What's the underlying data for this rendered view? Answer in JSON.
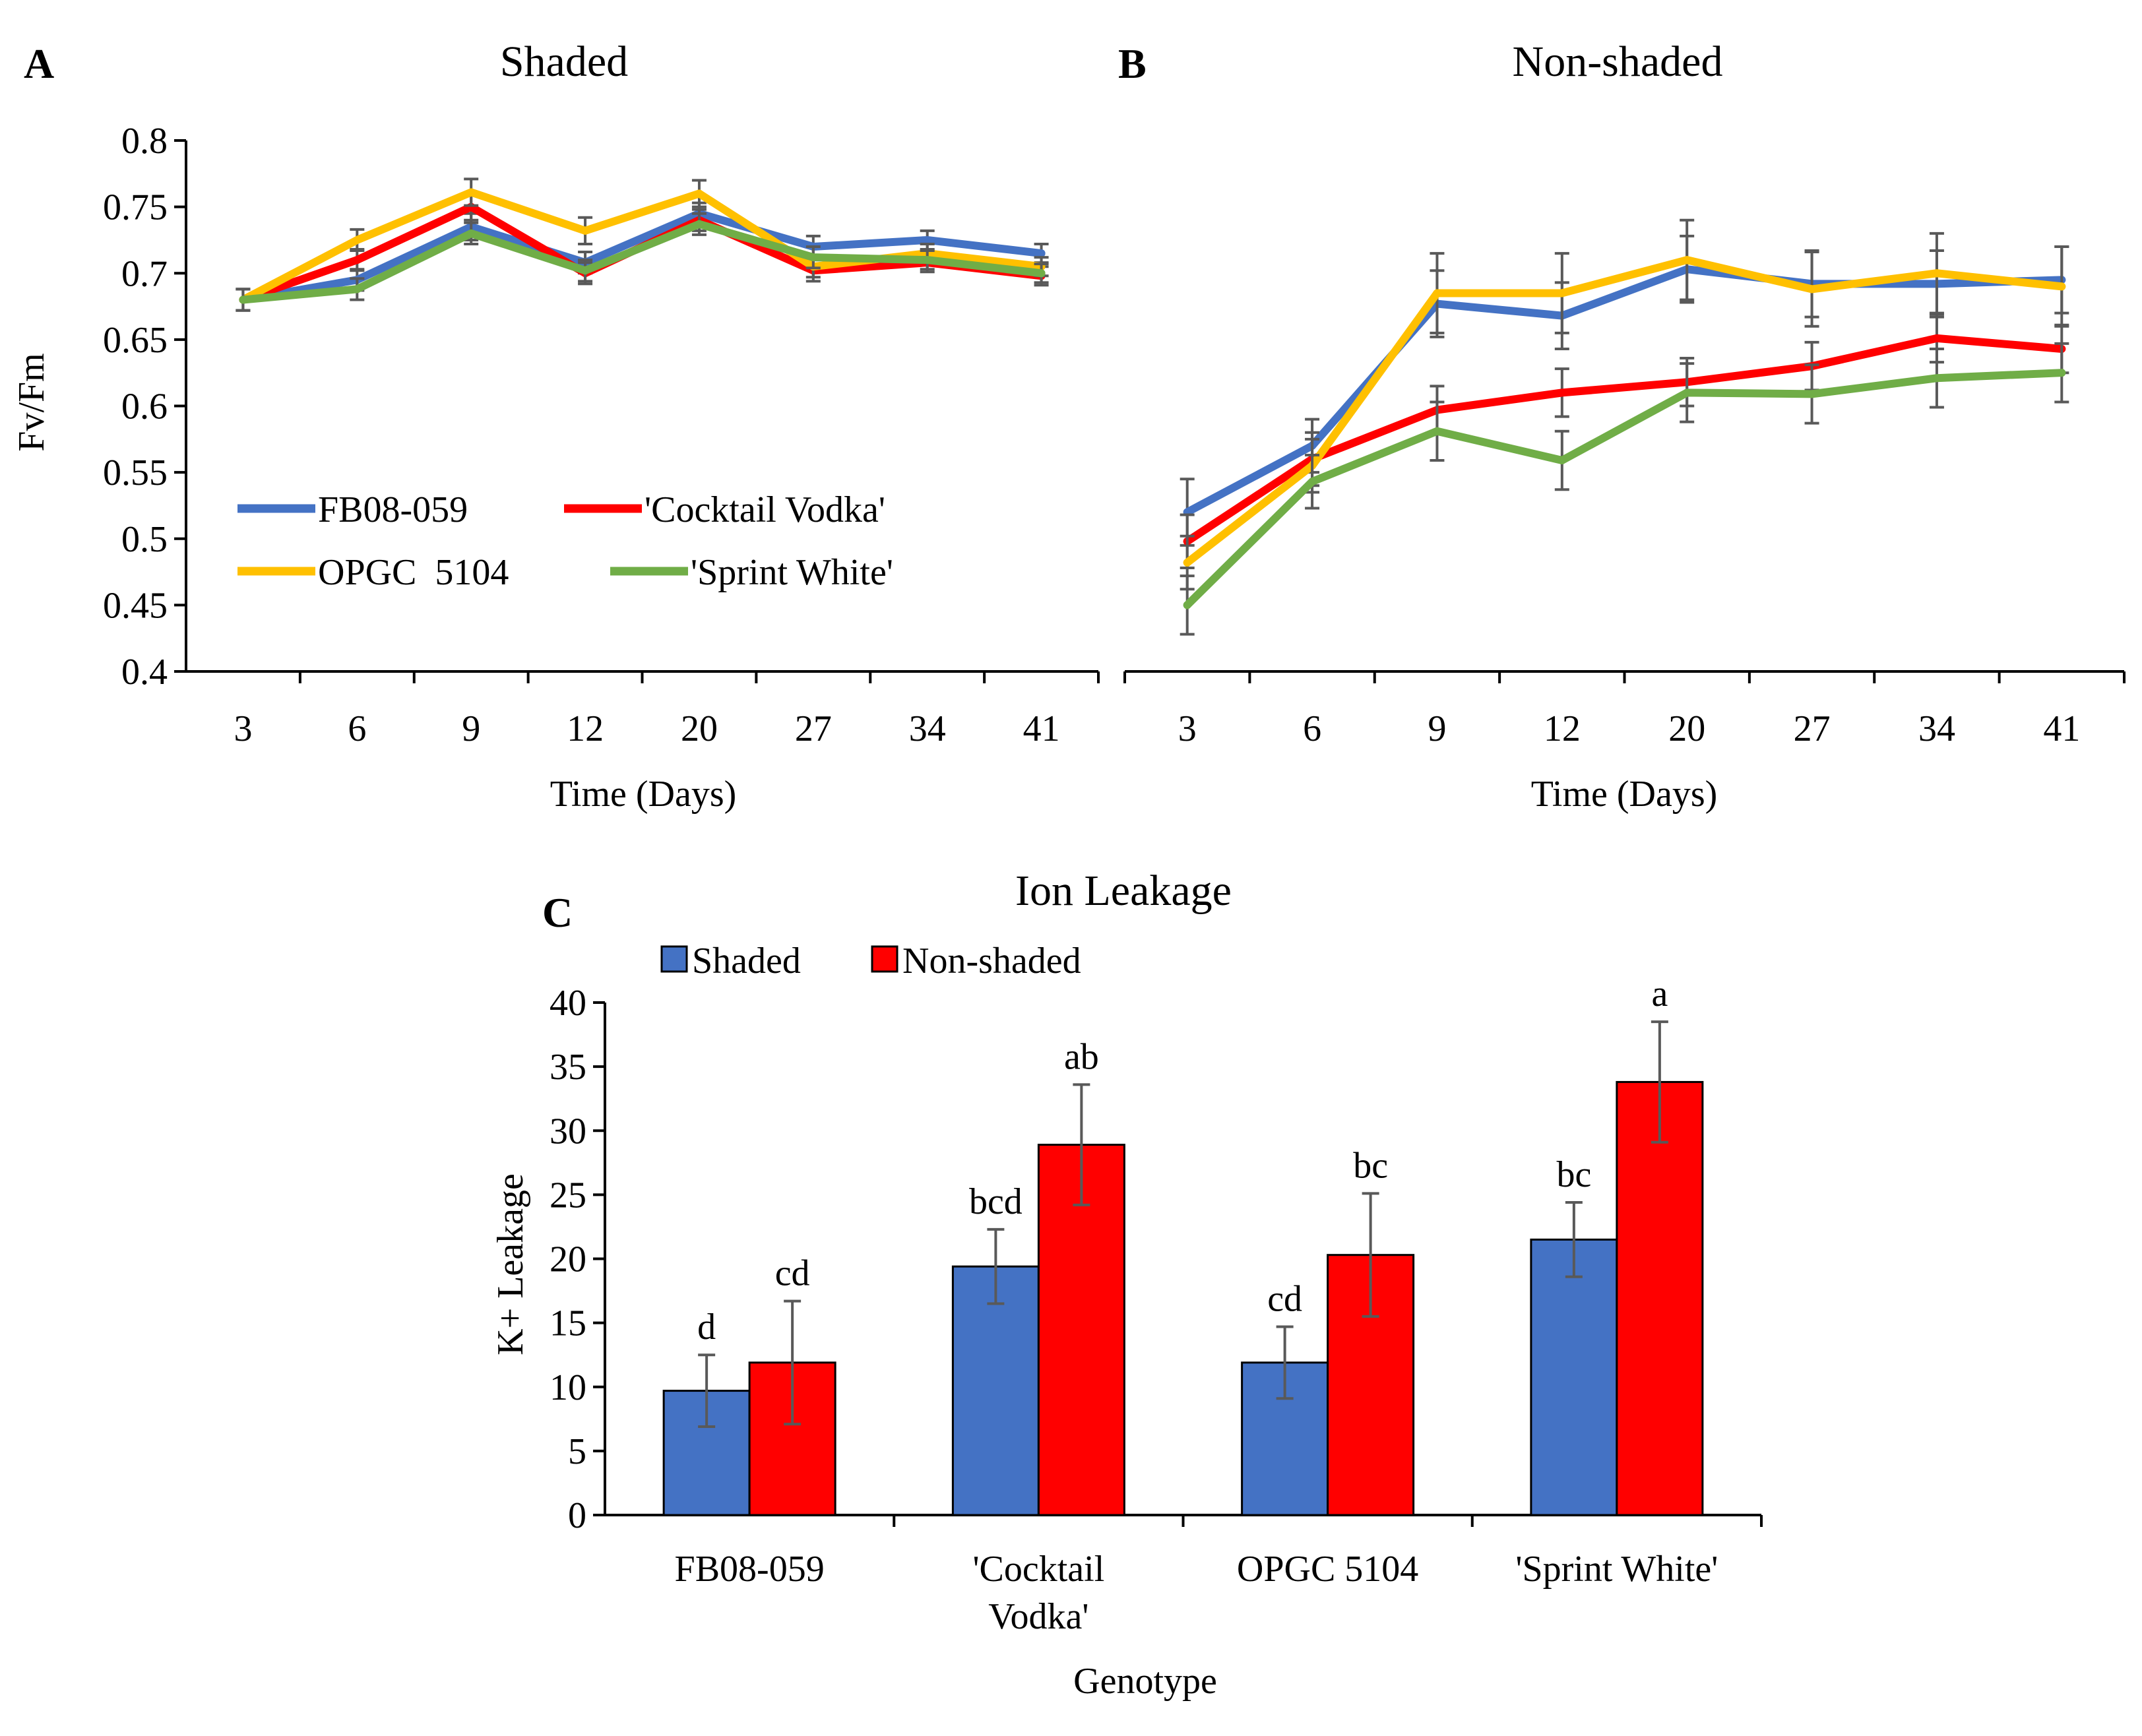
{
  "figure": {
    "colors": {
      "blue": "#4472C4",
      "red": "#FF0000",
      "yellow": "#FFC000",
      "green": "#70AD47",
      "bar_shaded": "#4472C4",
      "bar_nonshaded": "#FF0000",
      "error_bar": "#595959"
    }
  },
  "chart_data": [
    {
      "panel": "A",
      "type": "line",
      "title": "Shaded",
      "xlabel": "Time (Days)",
      "ylabel": "Fv/Fm",
      "categories": [
        "3",
        "6",
        "9",
        "12",
        "20",
        "27",
        "34",
        "41"
      ],
      "ylim": [
        0.4,
        0.8
      ],
      "yticks": [
        "0.4",
        "0.45",
        "0.5",
        "0.55",
        "0.6",
        "0.65",
        "0.7",
        "0.75",
        "0.8"
      ],
      "legend": [
        "FB08-059",
        "'Cocktail Vodka'",
        "OPGC  5104",
        "'Sprint White'"
      ],
      "series": [
        {
          "name": "FB08-059",
          "color": "#4472C4",
          "values": [
            0.68,
            0.695,
            0.735,
            0.708,
            0.745,
            0.72,
            0.725,
            0.715
          ],
          "errors": [
            0.008,
            0.008,
            0.01,
            0.008,
            0.008,
            0.008,
            0.007,
            0.007
          ]
        },
        {
          "name": "'Cocktail Vodka'",
          "color": "#FF0000",
          "values": [
            0.68,
            0.71,
            0.75,
            0.7,
            0.74,
            0.702,
            0.708,
            0.698
          ],
          "errors": [
            0.008,
            0.008,
            0.01,
            0.008,
            0.008,
            0.008,
            0.007,
            0.007
          ]
        },
        {
          "name": "OPGC  5104",
          "color": "#FFC000",
          "values": [
            0.68,
            0.725,
            0.761,
            0.732,
            0.76,
            0.705,
            0.715,
            0.705
          ],
          "errors": [
            0.008,
            0.008,
            0.01,
            0.01,
            0.01,
            0.008,
            0.007,
            0.007
          ]
        },
        {
          "name": "'Sprint White'",
          "color": "#70AD47",
          "values": [
            0.68,
            0.688,
            0.73,
            0.702,
            0.737,
            0.712,
            0.71,
            0.7
          ],
          "errors": [
            0.008,
            0.008,
            0.008,
            0.008,
            0.008,
            0.008,
            0.007,
            0.007
          ]
        }
      ]
    },
    {
      "panel": "B",
      "type": "line",
      "title": "Non-shaded",
      "xlabel": "Time (Days)",
      "ylabel": "",
      "categories": [
        "3",
        "6",
        "9",
        "12",
        "20",
        "27",
        "34",
        "41"
      ],
      "ylim": [
        0.4,
        0.8
      ],
      "series": [
        {
          "name": "FB08-059",
          "color": "#4472C4",
          "values": [
            0.52,
            0.57,
            0.677,
            0.668,
            0.703,
            0.692,
            0.692,
            0.695
          ],
          "errors": [
            0.025,
            0.02,
            0.025,
            0.025,
            0.025,
            0.025,
            0.025,
            0.025
          ]
        },
        {
          "name": "'Cocktail Vodka'",
          "color": "#FF0000",
          "values": [
            0.498,
            0.56,
            0.597,
            0.61,
            0.618,
            0.63,
            0.651,
            0.643
          ],
          "errors": [
            0.02,
            0.02,
            0.018,
            0.018,
            0.018,
            0.018,
            0.018,
            0.018
          ]
        },
        {
          "name": "OPGC  5104",
          "color": "#FFC000",
          "values": [
            0.482,
            0.555,
            0.685,
            0.685,
            0.71,
            0.688,
            0.7,
            0.69
          ],
          "errors": [
            0.02,
            0.02,
            0.03,
            0.03,
            0.03,
            0.028,
            0.03,
            0.03
          ]
        },
        {
          "name": "'Sprint White'",
          "color": "#70AD47",
          "values": [
            0.45,
            0.543,
            0.581,
            0.559,
            0.61,
            0.609,
            0.621,
            0.625
          ],
          "errors": [
            0.022,
            0.02,
            0.022,
            0.022,
            0.022,
            0.022,
            0.022,
            0.022
          ]
        }
      ]
    },
    {
      "panel": "C",
      "type": "bar",
      "title": "Ion Leakage",
      "xlabel": "Genotype",
      "ylabel": "K+ Leakage",
      "categories": [
        [
          "FB08-059"
        ],
        [
          "'Cocktail",
          "Vodka'"
        ],
        [
          "OPGC 5104"
        ],
        [
          "'Sprint White'"
        ]
      ],
      "ylim": [
        0,
        40
      ],
      "yticks": [
        "0",
        "5",
        "10",
        "15",
        "20",
        "25",
        "30",
        "35",
        "40"
      ],
      "legend": [
        "Shaded",
        "Non-shaded"
      ],
      "series": [
        {
          "name": "Shaded",
          "color": "#4472C4",
          "values": [
            9.7,
            19.4,
            11.9,
            21.5
          ],
          "errors": [
            2.8,
            2.9,
            2.8,
            2.9
          ],
          "labels": [
            "d",
            "bcd",
            "cd",
            "bc"
          ]
        },
        {
          "name": "Non-shaded",
          "color": "#FF0000",
          "values": [
            11.9,
            28.9,
            20.3,
            33.8
          ],
          "errors": [
            4.8,
            4.7,
            4.8,
            4.7
          ],
          "labels": [
            "cd",
            "ab",
            "bc",
            "a"
          ]
        }
      ]
    }
  ]
}
